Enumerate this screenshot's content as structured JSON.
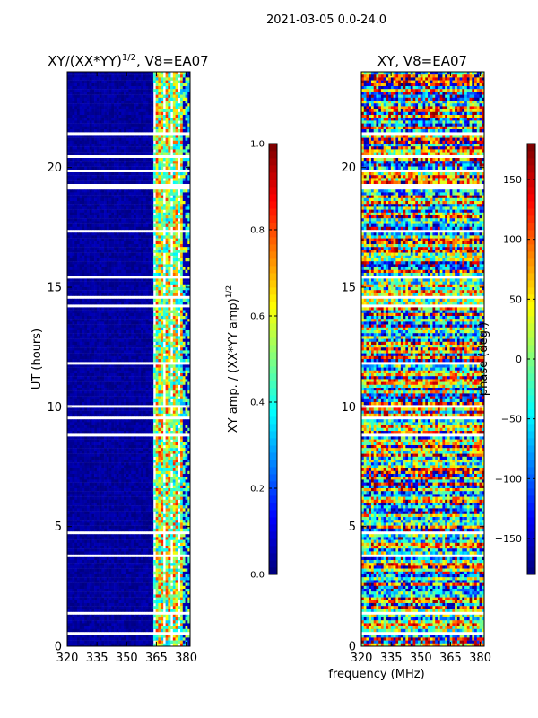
{
  "suptitle": "2021-03-05 0.0-24.0",
  "shared_xlabel": "frequency (MHz)",
  "chart_data": [
    {
      "type": "heatmap",
      "title_main": "XY/(XX*YY)",
      "title_exp": "1/2",
      "title_suffix": ", V8=EA07",
      "xlabel": "",
      "ylabel": "UT (hours)",
      "xlim": [
        320,
        382
      ],
      "ylim": [
        0,
        24
      ],
      "xticks": [
        320,
        335,
        350,
        365,
        380
      ],
      "yticks": [
        0,
        5,
        10,
        15,
        20
      ],
      "colorbar": {
        "label_main": "XY amp. / (XX*YY amp)",
        "label_exp": "1/2",
        "range": [
          0.0,
          1.0
        ],
        "ticks": [
          "0.0",
          "0.2",
          "0.4",
          "0.6",
          "0.8",
          "1.0"
        ],
        "colormap": "jet"
      },
      "description_band_mhz": [
        363,
        378
      ]
    },
    {
      "type": "heatmap",
      "title_main": "XY, V8=EA07",
      "xlabel": "frequency (MHz)",
      "ylabel": "",
      "xlim": [
        320,
        382
      ],
      "ylim": [
        0,
        24
      ],
      "xticks": [
        320,
        335,
        350,
        365,
        380
      ],
      "yticks": [
        0,
        5,
        10,
        15,
        20
      ],
      "colorbar": {
        "label_main": "phase (deg.)",
        "range": [
          -180,
          180
        ],
        "ticks": [
          "−150",
          "−100",
          "−50",
          "0",
          "50",
          "100",
          "150"
        ],
        "tick_values": [
          -150,
          -100,
          -50,
          0,
          50,
          100,
          150
        ],
        "colormap": "jet"
      }
    }
  ],
  "colors": {
    "jet_low": "#00007f",
    "jet_high": "#7f0000",
    "axis": "#000000",
    "background": "#ffffff"
  }
}
